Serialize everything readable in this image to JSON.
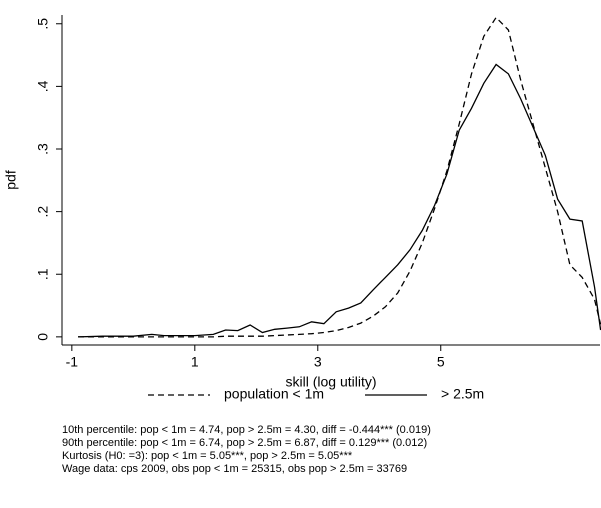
{
  "chart_data": {
    "type": "line",
    "xlabel": "skill (log utility)",
    "ylabel": "pdf",
    "x": [
      -0.9,
      -0.5,
      0,
      0.3,
      0.5,
      1,
      1.3,
      1.5,
      1.7,
      1.9,
      2.1,
      2.3,
      2.5,
      2.7,
      2.9,
      3.1,
      3.3,
      3.5,
      3.7,
      3.9,
      4.1,
      4.3,
      4.5,
      4.7,
      4.9,
      5.1,
      5.3,
      5.5,
      5.7,
      5.9,
      6.1,
      6.3,
      6.5,
      6.7,
      6.9,
      7.1,
      7.3,
      7.5,
      7.6
    ],
    "series": [
      {
        "name": "population < 1m",
        "color": "#000000",
        "linestyle": "dashed",
        "values": [
          0,
          0,
          0,
          0,
          0,
          0,
          0,
          0.001,
          0.001,
          0.001,
          0.001,
          0.002,
          0.003,
          0.004,
          0.005,
          0.007,
          0.01,
          0.015,
          0.022,
          0.033,
          0.048,
          0.07,
          0.105,
          0.15,
          0.205,
          0.265,
          0.34,
          0.42,
          0.48,
          0.51,
          0.49,
          0.41,
          0.34,
          0.27,
          0.2,
          0.115,
          0.095,
          0.06,
          0.02
        ]
      },
      {
        "name": "> 2.5m",
        "color": "#000000",
        "linestyle": "solid",
        "values": [
          0,
          0.001,
          0.001,
          0.004,
          0.002,
          0.002,
          0.004,
          0.011,
          0.01,
          0.019,
          0.007,
          0.012,
          0.014,
          0.016,
          0.024,
          0.021,
          0.04,
          0.046,
          0.054,
          0.075,
          0.095,
          0.115,
          0.139,
          0.17,
          0.21,
          0.26,
          0.33,
          0.365,
          0.405,
          0.435,
          0.42,
          0.38,
          0.335,
          0.29,
          0.22,
          0.188,
          0.185,
          0.08,
          0.011
        ]
      }
    ],
    "xlim": [
      -1.16,
      7.59
    ],
    "xticks": [
      -1,
      1,
      3,
      5
    ],
    "ylim": [
      -0.013,
      0.514
    ],
    "yticks": [
      0,
      {
        "value": 0.1,
        "label": ".1"
      },
      {
        "value": 0.2,
        "label": ".2"
      },
      {
        "value": 0.3,
        "label": ".3"
      },
      {
        "value": 0.4,
        "label": ".4"
      },
      {
        "value": 0.5,
        "label": ".5"
      }
    ],
    "notes": [
      "10th percentile: pop < 1m = 4.74, pop > 2.5m = 4.30, diff = -0.444*** (0.019)",
      "90th percentile: pop < 1m = 6.74, pop > 2.5m = 6.87, diff = 0.129*** (0.012)",
      "Kurtosis (H0: =3): pop < 1m = 5.05***, pop > 2.5m = 5.05***",
      "Wage data: cps 2009, obs pop < 1m = 25315, obs pop > 2.5m = 33769"
    ]
  }
}
